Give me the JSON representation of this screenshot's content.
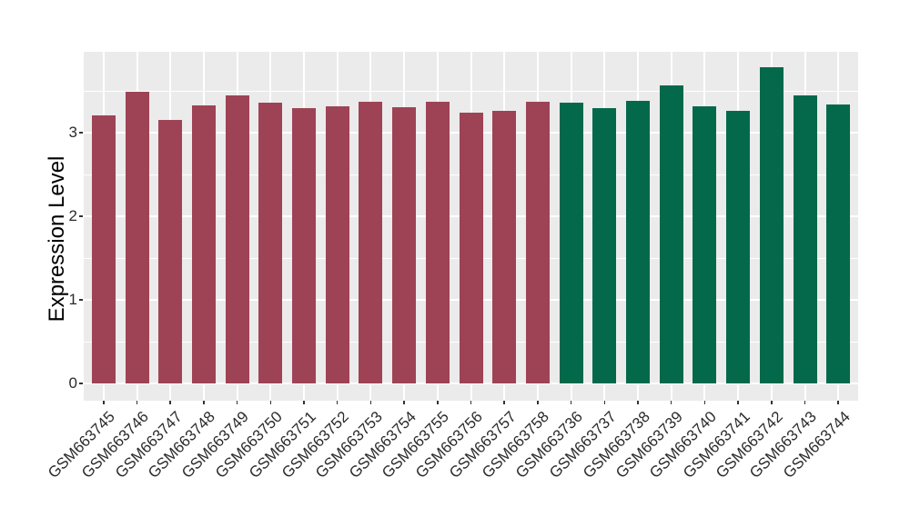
{
  "chart_data": {
    "type": "bar",
    "title": "",
    "xlabel": "",
    "ylabel": "Expression Level",
    "ylim": [
      0,
      3.97
    ],
    "yticks": [
      0,
      1,
      2,
      3
    ],
    "yticks_minor": [
      0.5,
      1.5,
      2.5,
      3.5
    ],
    "grid": "major and minor white gridlines on gray panel",
    "legend": "none",
    "categories": [
      "GSM663745",
      "GSM663746",
      "GSM663747",
      "GSM663748",
      "GSM663749",
      "GSM663750",
      "GSM663751",
      "GSM663752",
      "GSM663753",
      "GSM663754",
      "GSM663755",
      "GSM663756",
      "GSM663757",
      "GSM663758",
      "GSM663736",
      "GSM663737",
      "GSM663738",
      "GSM663739",
      "GSM663740",
      "GSM663741",
      "GSM663742",
      "GSM663743",
      "GSM663744"
    ],
    "values": [
      3.21,
      3.49,
      3.15,
      3.33,
      3.45,
      3.36,
      3.29,
      3.32,
      3.37,
      3.3,
      3.37,
      3.24,
      3.26,
      3.37,
      3.36,
      3.29,
      3.38,
      3.56,
      3.31,
      3.26,
      3.78,
      3.45,
      3.34
    ],
    "bar_groups": [
      0,
      0,
      0,
      0,
      0,
      0,
      0,
      0,
      0,
      0,
      0,
      0,
      0,
      0,
      1,
      1,
      1,
      1,
      1,
      1,
      1,
      1,
      1
    ],
    "group_colors": [
      "#9E4355",
      "#04694A"
    ]
  },
  "colors": {
    "background": "#FFFFFF",
    "panel_bg": "#EBEBEB",
    "gridline": "#FFFFFF",
    "tick_mark": "#333333",
    "axis_text": "#2B2B2B",
    "axis_title": "#000000"
  }
}
